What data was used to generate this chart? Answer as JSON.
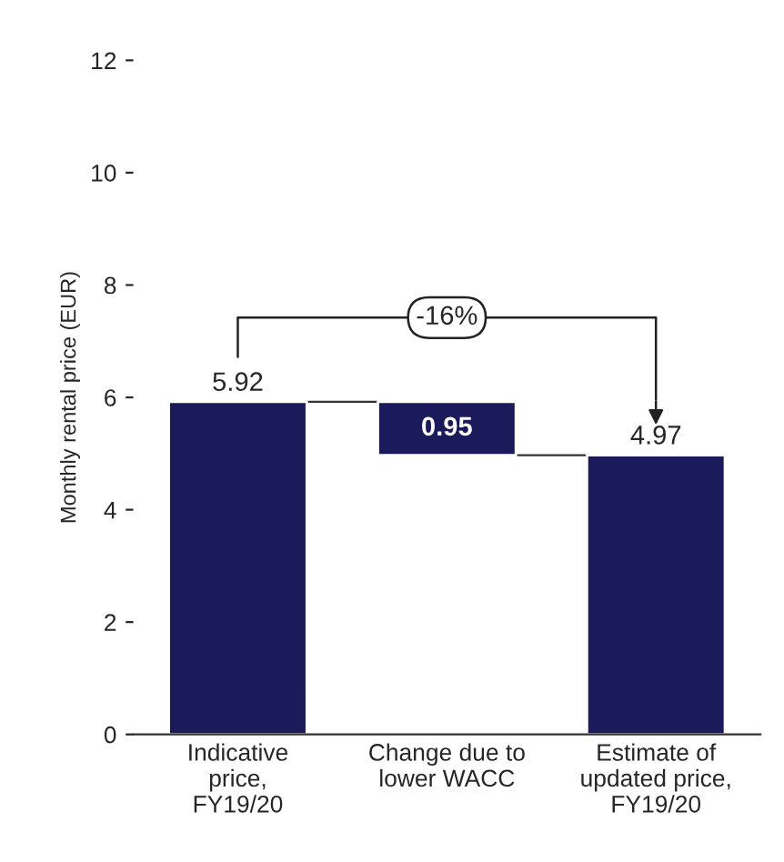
{
  "chart_data": {
    "type": "bar",
    "ylabel": "Monthly rental price (EUR)",
    "categories": [
      "Indicative\nprice,\nFY19/20",
      "Change due to\nlower WACC",
      "Estimate of\nupdated price,\nFY19/20"
    ],
    "values": [
      5.92,
      0.95,
      4.97
    ],
    "base": [
      0,
      4.97,
      0
    ],
    "value_labels": [
      "5.92",
      "0.95",
      "4.97"
    ],
    "color": "#1b1a5a",
    "ylim": [
      0,
      12
    ],
    "yticks": [
      0,
      2,
      4,
      6,
      8,
      10,
      12
    ],
    "grid": false,
    "annotations": [
      "-16%"
    ]
  }
}
